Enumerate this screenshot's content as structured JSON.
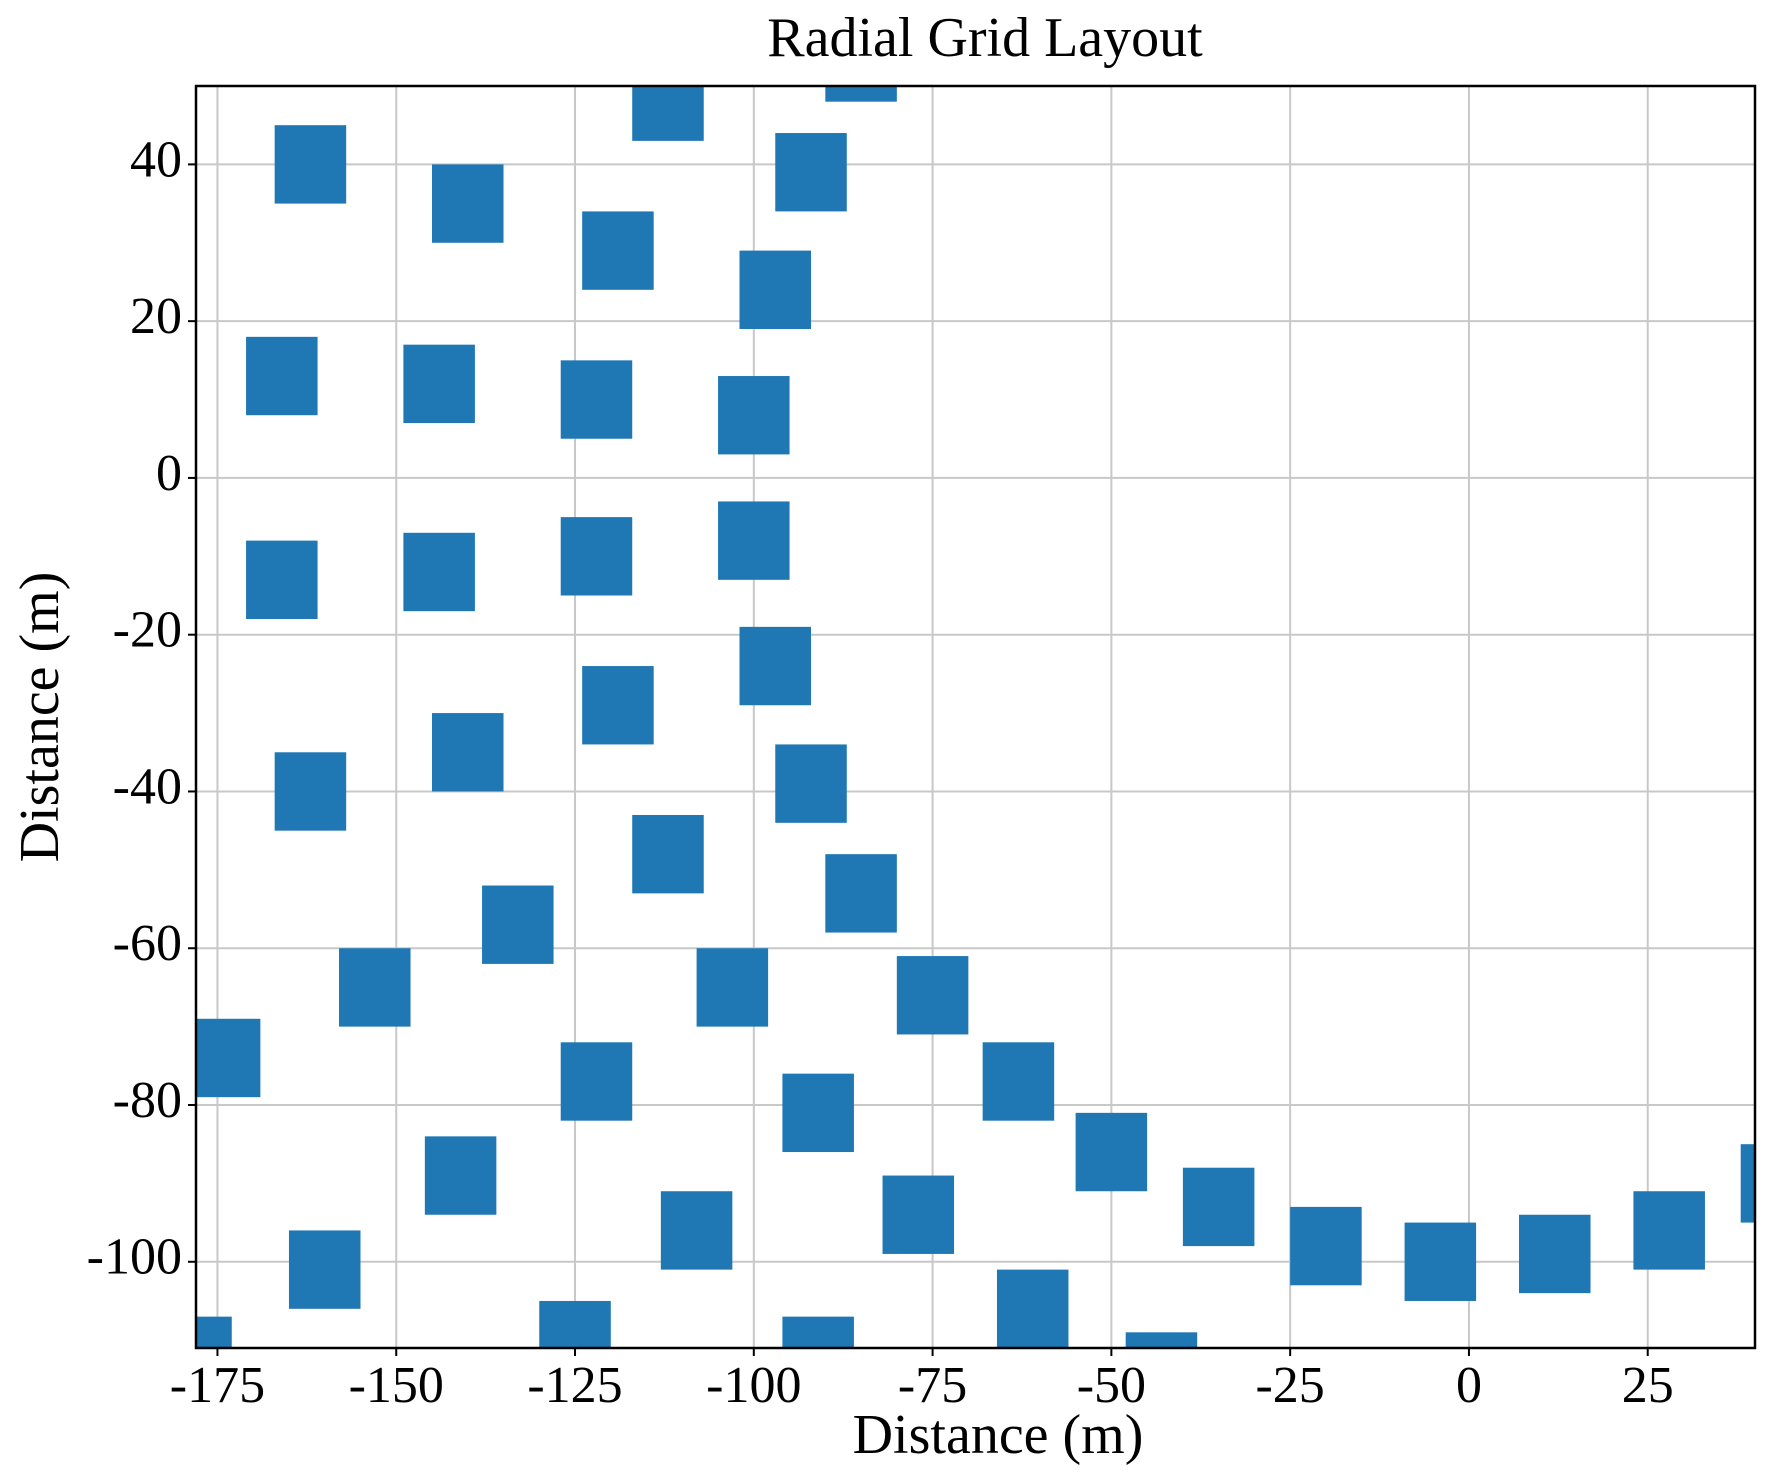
{
  "chart_data": {
    "type": "scatter",
    "title": "Radial Grid Layout",
    "xlabel": "Distance (m)",
    "ylabel": "Distance (m)",
    "x": [
      -112,
      -85,
      -162,
      -140,
      -92,
      -119,
      -97,
      -166,
      -144,
      -122,
      -100,
      -166,
      -144,
      -122,
      -100,
      -97,
      -119,
      -140,
      -162,
      -92,
      -112,
      -85,
      -133,
      -153,
      -103,
      -75,
      -174,
      -122,
      -63,
      -91,
      -50,
      -141,
      -35,
      -77,
      -108,
      -20,
      28,
      12,
      -4,
      43,
      -160,
      -61,
      -178,
      -125,
      -91,
      -43
    ],
    "y": [
      48,
      53,
      40,
      35,
      39,
      29,
      24,
      13,
      12,
      10,
      8,
      -13,
      -12,
      -10,
      -8,
      -24,
      -29,
      -35,
      -40,
      -39,
      -48,
      -53,
      -57,
      -65,
      -65,
      -66,
      -74,
      -77,
      -77,
      -81,
      -86,
      -89,
      -93,
      -94,
      -96,
      -98,
      -96,
      -99,
      -100,
      -90,
      -101,
      -106,
      -112,
      -110,
      -112,
      -114
    ],
    "marker": "square",
    "marker_size": 10,
    "color": "#1f77b4",
    "xlim": [
      -178,
      40
    ],
    "ylim": [
      -111,
      50
    ],
    "xticks": [
      -175,
      -150,
      -125,
      -100,
      -75,
      -50,
      -25,
      0,
      25
    ],
    "yticks": [
      -100,
      -80,
      -60,
      -40,
      -20,
      0,
      20,
      40
    ],
    "grid": true
  }
}
